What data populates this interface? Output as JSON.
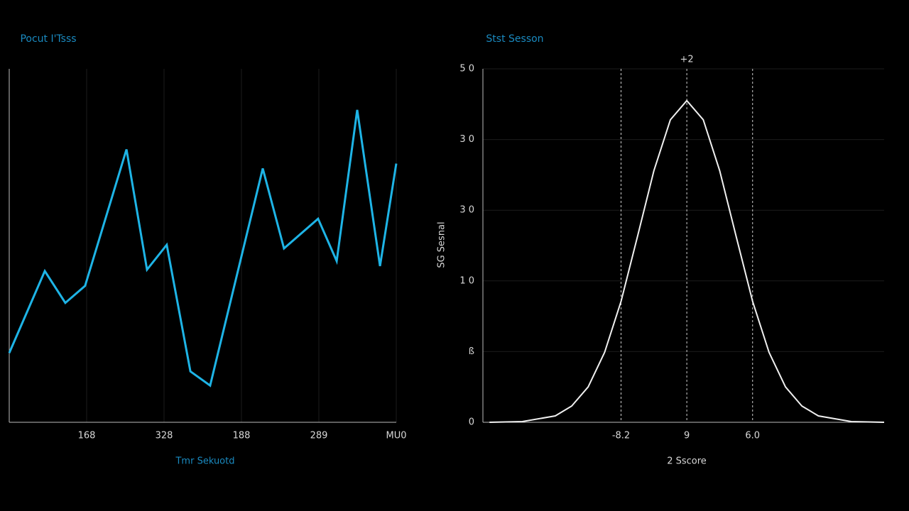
{
  "chart_data": [
    {
      "type": "line",
      "title": "Pocut I'Tsss",
      "x_label": "Tmr Sekuotd",
      "x": [
        0,
        9.2,
        14.5,
        19.6,
        30.3,
        35.6,
        40.7,
        46.8,
        51.9,
        65.5,
        71.0,
        79.8,
        84.6,
        89.9,
        95.8,
        100
      ],
      "series": [
        {
          "color": "#1eb4e6",
          "values": [
            0.98,
            2.14,
            1.69,
            1.93,
            3.86,
            2.16,
            2.51,
            0.72,
            0.52,
            3.59,
            2.46,
            2.88,
            2.28,
            4.42,
            2.21,
            3.66
          ]
        }
      ],
      "xlim": [
        0,
        100
      ],
      "xticks": [
        {
          "value": 20,
          "label": "168"
        },
        {
          "value": 40,
          "label": "328"
        },
        {
          "value": 60,
          "label": "188"
        },
        {
          "value": 80,
          "label": "289"
        },
        {
          "value": 100,
          "label": "MU0"
        }
      ],
      "ylim": [
        0,
        5
      ],
      "grid": true
    },
    {
      "type": "line",
      "title": "Stst Sesson",
      "x_label": "2 Sscore",
      "y_label": "SG Sesnal",
      "annotation": "+2",
      "x": [
        -3,
        -2.5,
        -2,
        -1.75,
        -1.5,
        -1.25,
        -1,
        -0.75,
        -0.5,
        -0.25,
        0,
        0.25,
        0.5,
        0.75,
        1,
        1.25,
        1.5,
        1.75,
        2,
        2.5,
        3
      ],
      "series": [
        {
          "color": "#f0f0f0",
          "values": [
            0,
            0.01,
            0.09,
            0.23,
            0.5,
            0.99,
            1.71,
            2.63,
            3.56,
            4.28,
            4.55,
            4.28,
            3.56,
            2.63,
            1.71,
            0.99,
            0.5,
            0.23,
            0.09,
            0.01,
            0
          ]
        }
      ],
      "xlim": [
        -3.1,
        3.0
      ],
      "xticks": [
        {
          "value": -1,
          "label": "-8.2"
        },
        {
          "value": 0,
          "label": "9"
        },
        {
          "value": 1,
          "label": "6.0"
        }
      ],
      "ylim": [
        0,
        5
      ],
      "yticks": [
        0,
        {
          "value": 1,
          "label": "ß"
        },
        {
          "value": 2,
          "label": "1 0"
        },
        {
          "value": 3,
          "label": "3 0"
        },
        {
          "value": 4,
          "label": "3 0"
        },
        {
          "value": 5,
          "label": "5 0"
        }
      ],
      "grid": true
    }
  ]
}
